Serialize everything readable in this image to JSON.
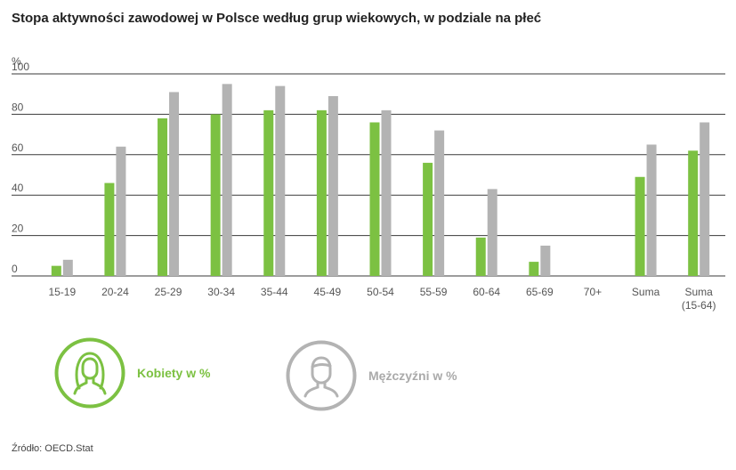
{
  "title": "Stopa aktywności zawodowej w Polsce według grup wiekowych, w podziale na płeć",
  "source": "Źródło: OECD.Stat",
  "colors": {
    "women": "#7cc142",
    "men": "#b3b3b3"
  },
  "legend": {
    "women": {
      "label": "Kobiety w %",
      "icon": "woman-icon"
    },
    "men": {
      "label": "Mężczyźni w %",
      "icon": "man-icon"
    }
  },
  "chart_data": {
    "type": "bar",
    "unit_label": "%",
    "ylim": [
      0,
      100
    ],
    "yticks": [
      0,
      20,
      40,
      60,
      80,
      100
    ],
    "grid": true,
    "categories": [
      "15-19",
      "20-24",
      "25-29",
      "30-34",
      "35-44",
      "45-49",
      "50-54",
      "55-59",
      "60-64",
      "65-69",
      "70+",
      "Suma",
      "Suma (15-64)"
    ],
    "series": [
      {
        "name": "Kobiety w %",
        "values": [
          5,
          46,
          78,
          80,
          82,
          82,
          76,
          56,
          19,
          7,
          0,
          49,
          62
        ]
      },
      {
        "name": "Mężczyźni w %",
        "values": [
          8,
          64,
          91,
          95,
          94,
          89,
          82,
          72,
          43,
          15,
          0,
          65,
          76
        ]
      }
    ]
  }
}
